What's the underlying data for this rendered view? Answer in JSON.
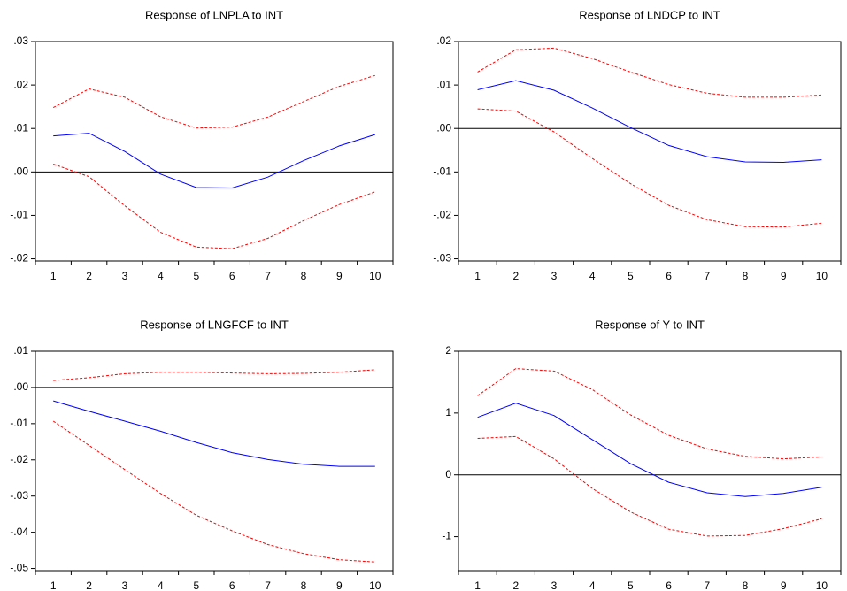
{
  "chart_data": [
    {
      "type": "line",
      "title": "Response of LNPLA to INT",
      "categories": [
        "1",
        "2",
        "3",
        "4",
        "5",
        "6",
        "7",
        "8",
        "9",
        "10"
      ],
      "ylim": [
        -0.0205,
        0.03
      ],
      "yticks": [
        {
          "value": -0.02,
          "label": "-.02"
        },
        {
          "value": -0.01,
          "label": "-.01"
        },
        {
          "value": 0,
          "label": ".00"
        },
        {
          "value": 0.01,
          "label": ".01"
        },
        {
          "value": 0.02,
          "label": ".02"
        },
        {
          "value": 0.03,
          "label": ".03"
        }
      ],
      "zero_line": true,
      "series": [
        {
          "color": "#0000ff",
          "dash": false,
          "values": [
            0.0083,
            0.0089,
            0.0047,
            -0.0005,
            -0.0036,
            -0.0037,
            -0.0012,
            0.0026,
            0.006,
            0.0086
          ]
        },
        {
          "color": "#ff0000",
          "dash": true,
          "values": [
            0.0148,
            0.0191,
            0.0172,
            0.0127,
            0.0101,
            0.0103,
            0.0126,
            0.0162,
            0.0197,
            0.0222
          ]
        },
        {
          "color": "#ff0000",
          "dash": true,
          "values": [
            0.0018,
            -0.0011,
            -0.0078,
            -0.0139,
            -0.0173,
            -0.0177,
            -0.0153,
            -0.0112,
            -0.0075,
            -0.0046
          ]
        }
      ]
    },
    {
      "type": "line",
      "title": "Response of LNDCP to INT",
      "categories": [
        "1",
        "2",
        "3",
        "4",
        "5",
        "6",
        "7",
        "8",
        "9",
        "10"
      ],
      "ylim": [
        -0.0305,
        0.02
      ],
      "yticks": [
        {
          "value": -0.03,
          "label": "-.03"
        },
        {
          "value": -0.02,
          "label": "-.02"
        },
        {
          "value": -0.01,
          "label": "-.01"
        },
        {
          "value": 0,
          "label": ".00"
        },
        {
          "value": 0.01,
          "label": ".01"
        },
        {
          "value": 0.02,
          "label": ".02"
        }
      ],
      "zero_line": true,
      "series": [
        {
          "color": "#0000ff",
          "dash": false,
          "values": [
            0.0089,
            0.011,
            0.0088,
            0.0047,
            0.0002,
            -0.0039,
            -0.0065,
            -0.0077,
            -0.0078,
            -0.0072
          ]
        },
        {
          "color": "#ff0000",
          "dash": true,
          "values": [
            0.013,
            0.0181,
            0.0185,
            0.0161,
            0.013,
            0.0101,
            0.0081,
            0.0072,
            0.0072,
            0.0077
          ]
        },
        {
          "color": "#ff0000",
          "dash": true,
          "values": [
            0.0045,
            0.004,
            -0.0008,
            -0.0069,
            -0.0127,
            -0.0177,
            -0.021,
            -0.0226,
            -0.0227,
            -0.0218
          ]
        }
      ]
    },
    {
      "type": "line",
      "title": "Response of LNGFCF to INT",
      "categories": [
        "1",
        "2",
        "3",
        "4",
        "5",
        "6",
        "7",
        "8",
        "9",
        "10"
      ],
      "ylim": [
        -0.0506,
        0.01
      ],
      "yticks": [
        {
          "value": -0.05,
          "label": "-.05"
        },
        {
          "value": -0.04,
          "label": "-.04"
        },
        {
          "value": -0.03,
          "label": "-.03"
        },
        {
          "value": -0.02,
          "label": "-.02"
        },
        {
          "value": -0.01,
          "label": "-.01"
        },
        {
          "value": 0,
          "label": ".00"
        },
        {
          "value": 0.01,
          "label": ".01"
        }
      ],
      "zero_line": true,
      "series": [
        {
          "color": "#0000ff",
          "dash": false,
          "values": [
            -0.0037,
            -0.0066,
            -0.0093,
            -0.0121,
            -0.0152,
            -0.018,
            -0.0199,
            -0.0212,
            -0.0218,
            -0.0218
          ]
        },
        {
          "color": "#ff0000",
          "dash": true,
          "values": [
            0.0019,
            0.0027,
            0.0038,
            0.0042,
            0.0042,
            0.004,
            0.0038,
            0.0039,
            0.0042,
            0.0049
          ]
        },
        {
          "color": "#ff0000",
          "dash": true,
          "values": [
            -0.0093,
            -0.016,
            -0.0227,
            -0.0293,
            -0.0353,
            -0.0396,
            -0.0434,
            -0.0459,
            -0.0476,
            -0.0482
          ]
        }
      ]
    },
    {
      "type": "line",
      "title": "Response of Y to INT",
      "categories": [
        "1",
        "2",
        "3",
        "4",
        "5",
        "6",
        "7",
        "8",
        "9",
        "10"
      ],
      "ylim": [
        -1.55,
        2
      ],
      "yticks": [
        -1,
        0,
        1,
        2
      ],
      "zero_line": true,
      "series": [
        {
          "color": "#0000ff",
          "dash": false,
          "values": [
            0.93,
            1.16,
            0.96,
            0.57,
            0.18,
            -0.12,
            -0.29,
            -0.35,
            -0.3,
            -0.2
          ]
        },
        {
          "color": "#ff0000",
          "dash": true,
          "values": [
            1.28,
            1.72,
            1.68,
            1.38,
            0.97,
            0.64,
            0.42,
            0.3,
            0.26,
            0.29
          ]
        },
        {
          "color": "#ff0000",
          "dash": true,
          "values": [
            0.59,
            0.62,
            0.26,
            -0.22,
            -0.6,
            -0.88,
            -0.99,
            -0.98,
            -0.87,
            -0.71
          ]
        }
      ]
    }
  ]
}
